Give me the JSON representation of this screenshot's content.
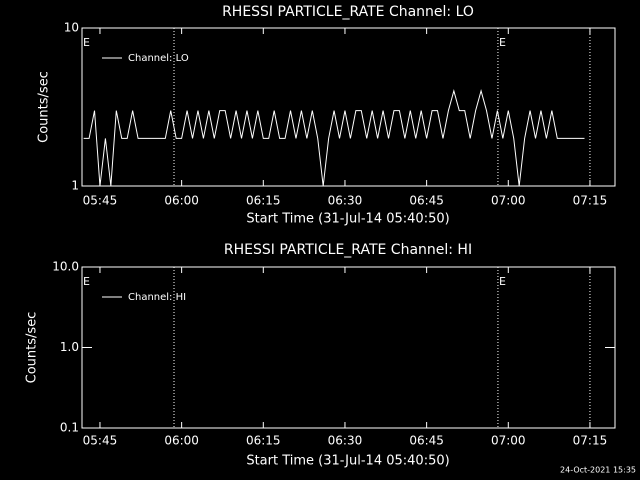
{
  "chart_data": [
    {
      "type": "line",
      "title": "RHESSI PARTICLE_RATE Channel: LO",
      "xlabel": "Start Time (31-Jul-14 05:40:50)",
      "ylabel": "Counts/sec",
      "log_y": true,
      "ylim": [
        1,
        10
      ],
      "yticks": [
        1,
        10
      ],
      "xlim": [
        341.7,
        439.6
      ],
      "xticks": [
        {
          "value": 345,
          "label": "05:45"
        },
        {
          "value": 360,
          "label": "06:00"
        },
        {
          "value": 375,
          "label": "06:15"
        },
        {
          "value": 390,
          "label": "06:30"
        },
        {
          "value": 405,
          "label": "06:45"
        },
        {
          "value": 420,
          "label": "07:00"
        },
        {
          "value": 435,
          "label": "07:15"
        }
      ],
      "vlines": [
        358.6,
        418.1,
        435
      ],
      "annotations": [
        {
          "text": "E",
          "x": 341.7
        },
        {
          "text": "E",
          "x": 418.1
        }
      ],
      "x": [
        342,
        343,
        344,
        345,
        346,
        347,
        348,
        349,
        350,
        351,
        352,
        353,
        354,
        355,
        356,
        357,
        358,
        359,
        360,
        361,
        362,
        363,
        364,
        365,
        366,
        367,
        368,
        369,
        370,
        371,
        372,
        373,
        374,
        375,
        376,
        377,
        378,
        379,
        380,
        381,
        382,
        383,
        384,
        385,
        386,
        387,
        388,
        389,
        390,
        391,
        392,
        393,
        394,
        395,
        396,
        397,
        398,
        399,
        400,
        401,
        402,
        403,
        404,
        405,
        406,
        407,
        408,
        409,
        410,
        411,
        412,
        413,
        414,
        415,
        416,
        417,
        418,
        419,
        420,
        421,
        422,
        423,
        424,
        425,
        426,
        427,
        428,
        429,
        430,
        431,
        432,
        433,
        434
      ],
      "series": [
        {
          "name": "Channel: LO",
          "color": "#ffffff",
          "values": [
            2,
            2,
            3,
            1,
            2,
            1,
            3,
            2,
            2,
            3,
            2,
            2,
            2,
            2,
            2,
            2,
            3,
            2,
            2,
            3,
            2,
            3,
            2,
            3,
            2,
            3,
            3,
            2,
            3,
            2,
            3,
            2,
            3,
            2,
            2,
            3,
            2,
            2,
            3,
            2,
            3,
            2,
            3,
            2,
            1,
            2,
            3,
            2,
            3,
            2,
            3,
            3,
            2,
            3,
            2,
            3,
            2,
            3,
            3,
            2,
            3,
            2,
            3,
            2,
            3,
            3,
            2,
            3,
            4,
            3,
            3,
            2,
            3,
            4,
            3,
            2,
            3,
            2,
            3,
            2,
            1,
            2,
            3,
            2,
            3,
            2,
            3,
            2,
            2,
            2,
            2,
            2,
            2
          ]
        }
      ]
    },
    {
      "type": "line",
      "title": "RHESSI PARTICLE_RATE Channel: HI",
      "xlabel": "Start Time (31-Jul-14 05:40:50)",
      "ylabel": "Counts/sec",
      "log_y": true,
      "ylim": [
        0.1,
        10
      ],
      "yticks": [
        0.1,
        {
          "value": 1,
          "label": "1.0"
        },
        {
          "value": 10,
          "label": "10.0"
        }
      ],
      "xlim": [
        341.7,
        439.6
      ],
      "xticks": [
        {
          "value": 345,
          "label": "05:45"
        },
        {
          "value": 360,
          "label": "06:00"
        },
        {
          "value": 375,
          "label": "06:15"
        },
        {
          "value": 390,
          "label": "06:30"
        },
        {
          "value": 405,
          "label": "06:45"
        },
        {
          "value": 420,
          "label": "07:00"
        },
        {
          "value": 435,
          "label": "07:15"
        }
      ],
      "vlines": [
        358.6,
        418.1,
        435
      ],
      "annotations": [
        {
          "text": "E",
          "x": 341.7
        },
        {
          "text": "E",
          "x": 418.1
        }
      ],
      "x": [],
      "series": [
        {
          "name": "Channel: HI",
          "color": "#ffffff",
          "values": []
        }
      ]
    }
  ],
  "footer": "24-Oct-2021 15:35"
}
